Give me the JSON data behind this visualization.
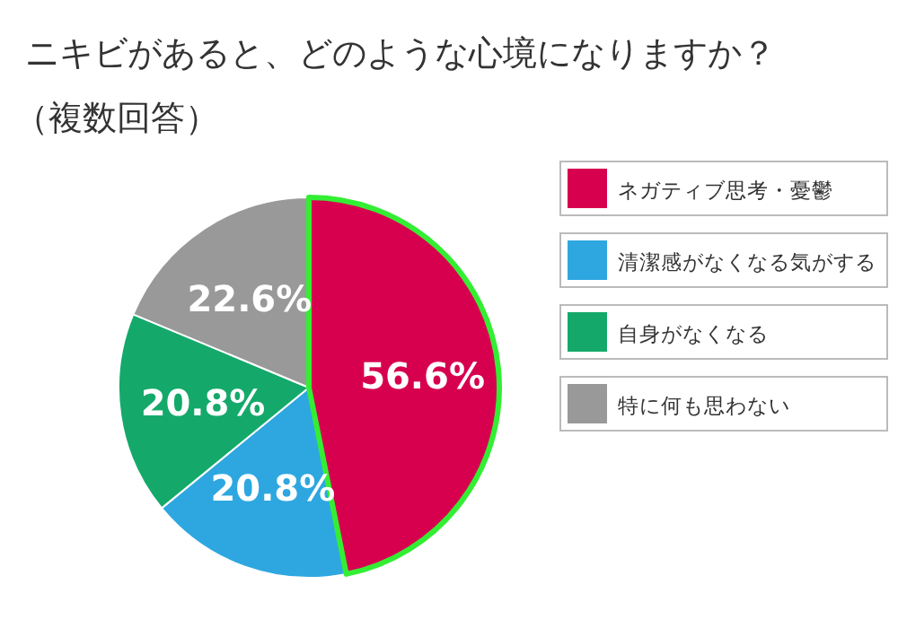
{
  "chart_data": {
    "type": "pie",
    "title": "ニキビがあると、どのような心境になりますか？",
    "subtitle": "（複数回答）",
    "categories": [
      "ネガティブ思考・憂鬱",
      "清潔感がなくなる気がする",
      "自身がなくなる",
      "特に何も思わない"
    ],
    "values": [
      56.6,
      20.8,
      20.8,
      22.6
    ],
    "colors": [
      "#d7004f",
      "#2ea7e0",
      "#14a96a",
      "#999999"
    ],
    "value_labels": [
      "56.6%",
      "20.8%",
      "20.8%",
      "22.6%"
    ],
    "legend": "right"
  }
}
